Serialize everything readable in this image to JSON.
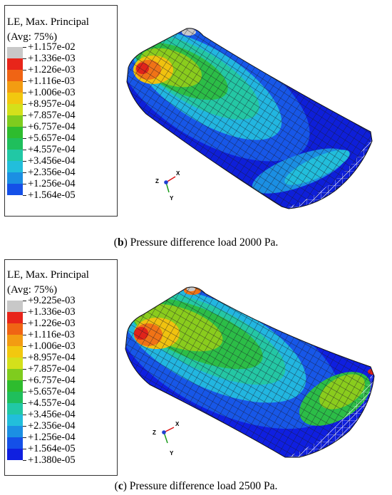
{
  "panels": [
    {
      "id": "b",
      "legend": {
        "title_line1": "LE, Max. Principal",
        "title_line2": "(Avg: 75%)",
        "entries": [
          "+1.157e-02",
          "+1.336e-03",
          "+1.226e-03",
          "+1.116e-03",
          "+1.006e-03",
          "+8.957e-04",
          "+7.857e-04",
          "+6.757e-04",
          "+5.657e-04",
          "+4.557e-04",
          "+3.456e-04",
          "+2.356e-04",
          "+1.256e-04",
          "+1.564e-05"
        ],
        "colors": [
          "#c8c8c8",
          "#e8251a",
          "#f06414",
          "#f39c12",
          "#f2c80f",
          "#d4e01b",
          "#7fcc1e",
          "#2ebc2e",
          "#1fbf5c",
          "#21c8a5",
          "#22bedb",
          "#1b8fe3",
          "#1450e8",
          "#0f1fe0"
        ]
      },
      "triad": {
        "x": "X",
        "y": "Y",
        "z": "Z"
      },
      "caption": {
        "prefix": "(",
        "letter": "b",
        "suffix": ") Pressure difference load 2000 Pa."
      }
    },
    {
      "id": "c",
      "legend": {
        "title_line1": "LE, Max. Principal",
        "title_line2": "(Avg: 75%)",
        "entries": [
          "+9.225e-03",
          "+1.336e-03",
          "+1.226e-03",
          "+1.116e-03",
          "+1.006e-03",
          "+8.957e-04",
          "+7.857e-04",
          "+6.757e-04",
          "+5.657e-04",
          "+4.557e-04",
          "+3.456e-04",
          "+2.356e-04",
          "+1.256e-04",
          "+1.564e-05",
          "+1.380e-05"
        ],
        "colors": [
          "#c8c8c8",
          "#e8251a",
          "#f06414",
          "#f39c12",
          "#f2c80f",
          "#d4e01b",
          "#7fcc1e",
          "#2ebc2e",
          "#1fbf5c",
          "#21c8a5",
          "#22bedb",
          "#1b8fe3",
          "#1450e8",
          "#0f1fe0",
          "#333333"
        ]
      },
      "triad": {
        "x": "X",
        "y": "Y",
        "z": "Z"
      },
      "caption": {
        "prefix": "(",
        "letter": "c",
        "suffix": ") Pressure difference load 2500 Pa."
      }
    }
  ]
}
